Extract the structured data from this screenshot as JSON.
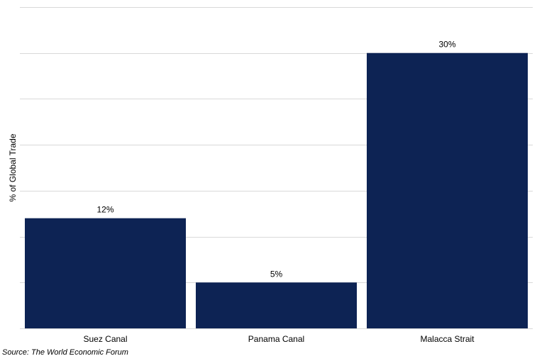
{
  "chart_data": {
    "type": "bar",
    "categories": [
      "Suez Canal",
      "Panama Canal",
      "Malacca Strait"
    ],
    "values": [
      12,
      5,
      30
    ],
    "data_labels": [
      "12%",
      "5%",
      "30%"
    ],
    "title": "",
    "xlabel": "",
    "ylabel": "% of Global Trade",
    "ylim": [
      0,
      35
    ],
    "grid": true,
    "legend": "none",
    "bar_color": "#0d2354",
    "grid_color": "#d9d9d9"
  },
  "source": {
    "label": "Source:",
    "text": "The World Economic Forum"
  }
}
